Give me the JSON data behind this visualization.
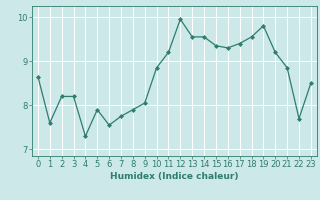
{
  "x": [
    0,
    1,
    2,
    3,
    4,
    5,
    6,
    7,
    8,
    9,
    10,
    11,
    12,
    13,
    14,
    15,
    16,
    17,
    18,
    19,
    20,
    21,
    22,
    23
  ],
  "y": [
    8.65,
    7.6,
    8.2,
    8.2,
    7.3,
    7.9,
    7.55,
    7.75,
    7.9,
    8.05,
    8.85,
    9.2,
    9.95,
    9.55,
    9.55,
    9.35,
    9.3,
    9.4,
    9.55,
    9.8,
    9.2,
    8.85,
    7.7,
    8.5
  ],
  "line_color": "#2e7d6e",
  "marker": "D",
  "marker_size": 2.0,
  "bg_color": "#cce8e8",
  "grid_color": "#ffffff",
  "xlabel": "Humidex (Indice chaleur)",
  "ylim": [
    6.85,
    10.25
  ],
  "xlim": [
    -0.5,
    23.5
  ],
  "yticks": [
    7,
    8,
    9,
    10
  ],
  "xticks": [
    0,
    1,
    2,
    3,
    4,
    5,
    6,
    7,
    8,
    9,
    10,
    11,
    12,
    13,
    14,
    15,
    16,
    17,
    18,
    19,
    20,
    21,
    22,
    23
  ],
  "tick_color": "#2e7d6e",
  "label_fontsize": 6.5,
  "tick_fontsize": 6.0,
  "linewidth": 0.9
}
